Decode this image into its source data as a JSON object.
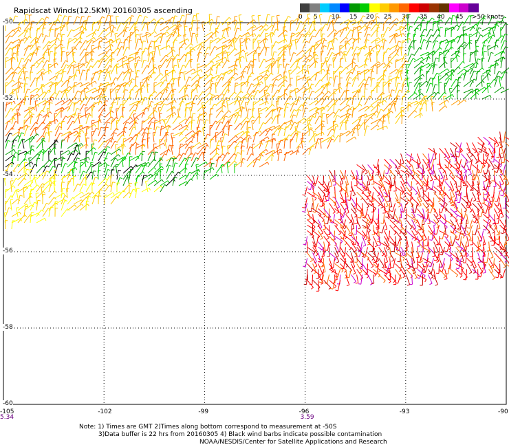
{
  "title": "Rapidscat Winds(12.5KM) 20160305 ascending",
  "legend": {
    "colors": [
      "#404040",
      "#808080",
      "#00ccff",
      "#0088ff",
      "#0000ff",
      "#009900",
      "#00cc00",
      "#ffff00",
      "#ffcc00",
      "#ff9900",
      "#ff6600",
      "#ff0000",
      "#cc0000",
      "#993300",
      "#663300",
      "#ff00ff",
      "#cc00cc",
      "#660099"
    ],
    "labels": [
      "0",
      "5",
      "10",
      "15",
      "20",
      "25",
      "30",
      "35",
      "40",
      "45",
      ">50 knots"
    ]
  },
  "axes": {
    "lon_ticks": [
      "-105",
      "-102",
      "-99",
      "-96",
      "-93",
      "-90"
    ],
    "lat_ticks": [
      "-50",
      "-52",
      "-54",
      "-56",
      "-58",
      "-60"
    ],
    "lon_range": [
      -105,
      -90
    ],
    "lat_range": [
      -60,
      -50
    ],
    "grid": "dotted"
  },
  "time_labels": [
    {
      "lon": -105,
      "text": "5.34"
    },
    {
      "lon": -96,
      "text": "3.59"
    }
  ],
  "notes": [
    "Note: 1) Times are GMT 2)Times along bottom correspond to measurement at -50S",
    "3)Data buffer is 22 hrs from 20160305 4) Black wind barbs indicate possible contamination",
    "NOAA/NESDIS/Center for Satellite Applications and Research"
  ],
  "swaths": [
    {
      "name": "western-swath",
      "bounds_lat_lon": [
        [
          -50,
          -105
        ],
        [
          -50,
          -90
        ],
        [
          -51.8,
          -90
        ],
        [
          -53.5,
          -96
        ],
        [
          -55.5,
          -105
        ]
      ]
    },
    {
      "name": "eastern-swath",
      "bounds_lat_lon": [
        [
          -54,
          -96
        ],
        [
          -52.8,
          -90
        ],
        [
          -56.5,
          -90
        ],
        [
          -56.8,
          -96
        ]
      ]
    }
  ]
}
